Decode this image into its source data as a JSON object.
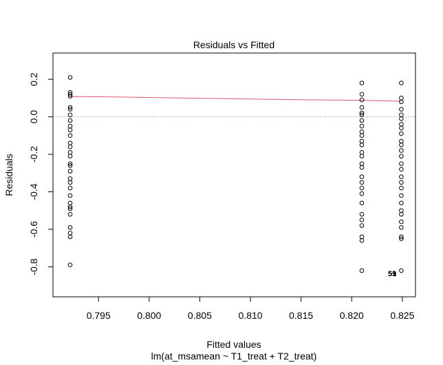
{
  "chart_data": {
    "type": "scatter",
    "title": "Residuals vs Fitted",
    "xlabel": "Fitted values",
    "subtitle": "lm(at_msamean ~ T1_treat + T2_treat)",
    "ylabel": "Residuals",
    "xlim": [
      0.7905,
      0.8263
    ],
    "ylim": [
      -0.96,
      0.34
    ],
    "x_ticks": [
      0.795,
      0.8,
      0.805,
      0.81,
      0.815,
      0.82,
      0.825
    ],
    "x_tick_labels": [
      "0.795",
      "0.800",
      "0.805",
      "0.810",
      "0.815",
      "0.820",
      "0.825"
    ],
    "y_ticks": [
      0.2,
      0.0,
      -0.2,
      -0.4,
      -0.6,
      -0.8
    ],
    "y_tick_labels": [
      "0.2",
      "0.0",
      "-0.2",
      "-0.4",
      "-0.6",
      "-0.8"
    ],
    "reference_line": {
      "y": 0,
      "style": "dotted",
      "color": "#999999"
    },
    "smooth_line": {
      "color": "#DF536B",
      "points": [
        [
          0.7922,
          0.108
        ],
        [
          0.7965,
          0.106
        ],
        [
          0.8025,
          0.101
        ],
        [
          0.8085,
          0.096
        ],
        [
          0.8145,
          0.091
        ],
        [
          0.821,
          0.088
        ],
        [
          0.8249,
          0.083
        ]
      ]
    },
    "point_color": "#000000",
    "series": [
      {
        "x": 0.7922,
        "residuals": [
          0.21,
          0.13,
          0.12,
          0.11,
          0.05,
          0.04,
          0.01,
          -0.02,
          -0.05,
          -0.07,
          -0.1,
          -0.14,
          -0.16,
          -0.19,
          -0.21,
          -0.25,
          -0.26,
          -0.29,
          -0.33,
          -0.35,
          -0.38,
          -0.42,
          -0.46,
          -0.48,
          -0.49,
          -0.52,
          -0.59,
          -0.62,
          -0.64,
          -0.79
        ]
      },
      {
        "x": 0.821,
        "residuals": [
          0.18,
          0.12,
          0.09,
          0.05,
          0.02,
          0.01,
          -0.02,
          -0.05,
          -0.08,
          -0.1,
          -0.13,
          -0.15,
          -0.19,
          -0.21,
          -0.25,
          -0.27,
          -0.32,
          -0.35,
          -0.38,
          -0.41,
          -0.46,
          -0.52,
          -0.55,
          -0.58,
          -0.64,
          -0.66,
          -0.82
        ]
      },
      {
        "x": 0.8249,
        "residuals": [
          0.18,
          0.1,
          0.08,
          0.04,
          0.01,
          -0.01,
          -0.04,
          -0.06,
          -0.09,
          -0.13,
          -0.15,
          -0.18,
          -0.21,
          -0.25,
          -0.28,
          -0.32,
          -0.35,
          -0.38,
          -0.42,
          -0.46,
          -0.5,
          -0.52,
          -0.56,
          -0.59,
          -0.64,
          -0.65,
          -0.82
        ]
      }
    ],
    "annotations": [
      {
        "text": "59",
        "x": 0.824,
        "y": -0.836
      },
      {
        "text": "51",
        "x": 0.824,
        "y": -0.836
      }
    ]
  }
}
